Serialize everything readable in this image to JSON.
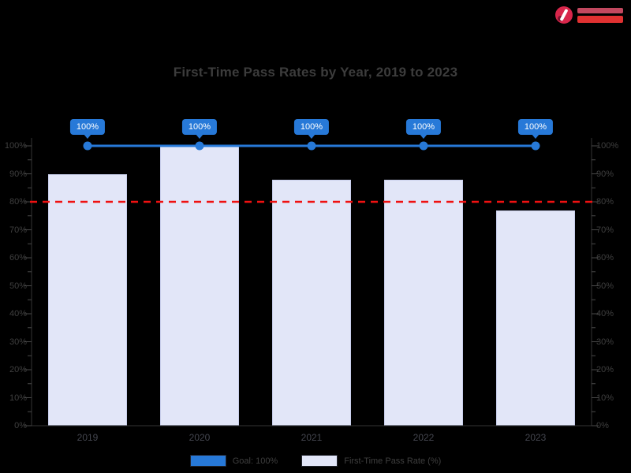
{
  "page": {
    "background": "#000000"
  },
  "title": "First-Time Pass Rates by Year, 2019 to 2023",
  "logo": {
    "accent_color": "#d8264b",
    "bar_color": "#e03131"
  },
  "legend": [
    {
      "label": "Goal: 100%",
      "color": "#2779d8"
    },
    {
      "label": "First-Time Pass Rate (%)",
      "color": "#e2e6f8"
    }
  ],
  "chart_data": {
    "type": "bar",
    "title": "First-Time Pass Rates by Year, 2019 to 2023",
    "categories": [
      "2019",
      "2020",
      "2021",
      "2022",
      "2023"
    ],
    "series": [
      {
        "name": "Goal: 100%",
        "type": "line",
        "color": "#2779d8",
        "values": [
          100,
          100,
          100,
          100,
          100
        ],
        "data_labels": [
          "100%",
          "100%",
          "100%",
          "100%",
          "100%"
        ]
      },
      {
        "name": "First-Time Pass Rate (%)",
        "type": "bar",
        "color": "#e2e6f8",
        "values": [
          90,
          100,
          88,
          88,
          77
        ]
      }
    ],
    "reference_line": {
      "value": 80,
      "color": "#ef1111",
      "style": "dashed"
    },
    "xlabel": "",
    "ylabel": "",
    "ylim": [
      0,
      100
    ],
    "ytick_step": 10,
    "ytick_labels": [
      "0%",
      "10%",
      "20%",
      "30%",
      "40%",
      "50%",
      "60%",
      "70%",
      "80%",
      "90%",
      "100%"
    ],
    "right_axis_labels": [
      "0%",
      "10%",
      "20%",
      "30%",
      "40%",
      "50%",
      "60%",
      "70%",
      "80%",
      "90%",
      "100%"
    ],
    "grid": false,
    "legend_position": "bottom"
  }
}
